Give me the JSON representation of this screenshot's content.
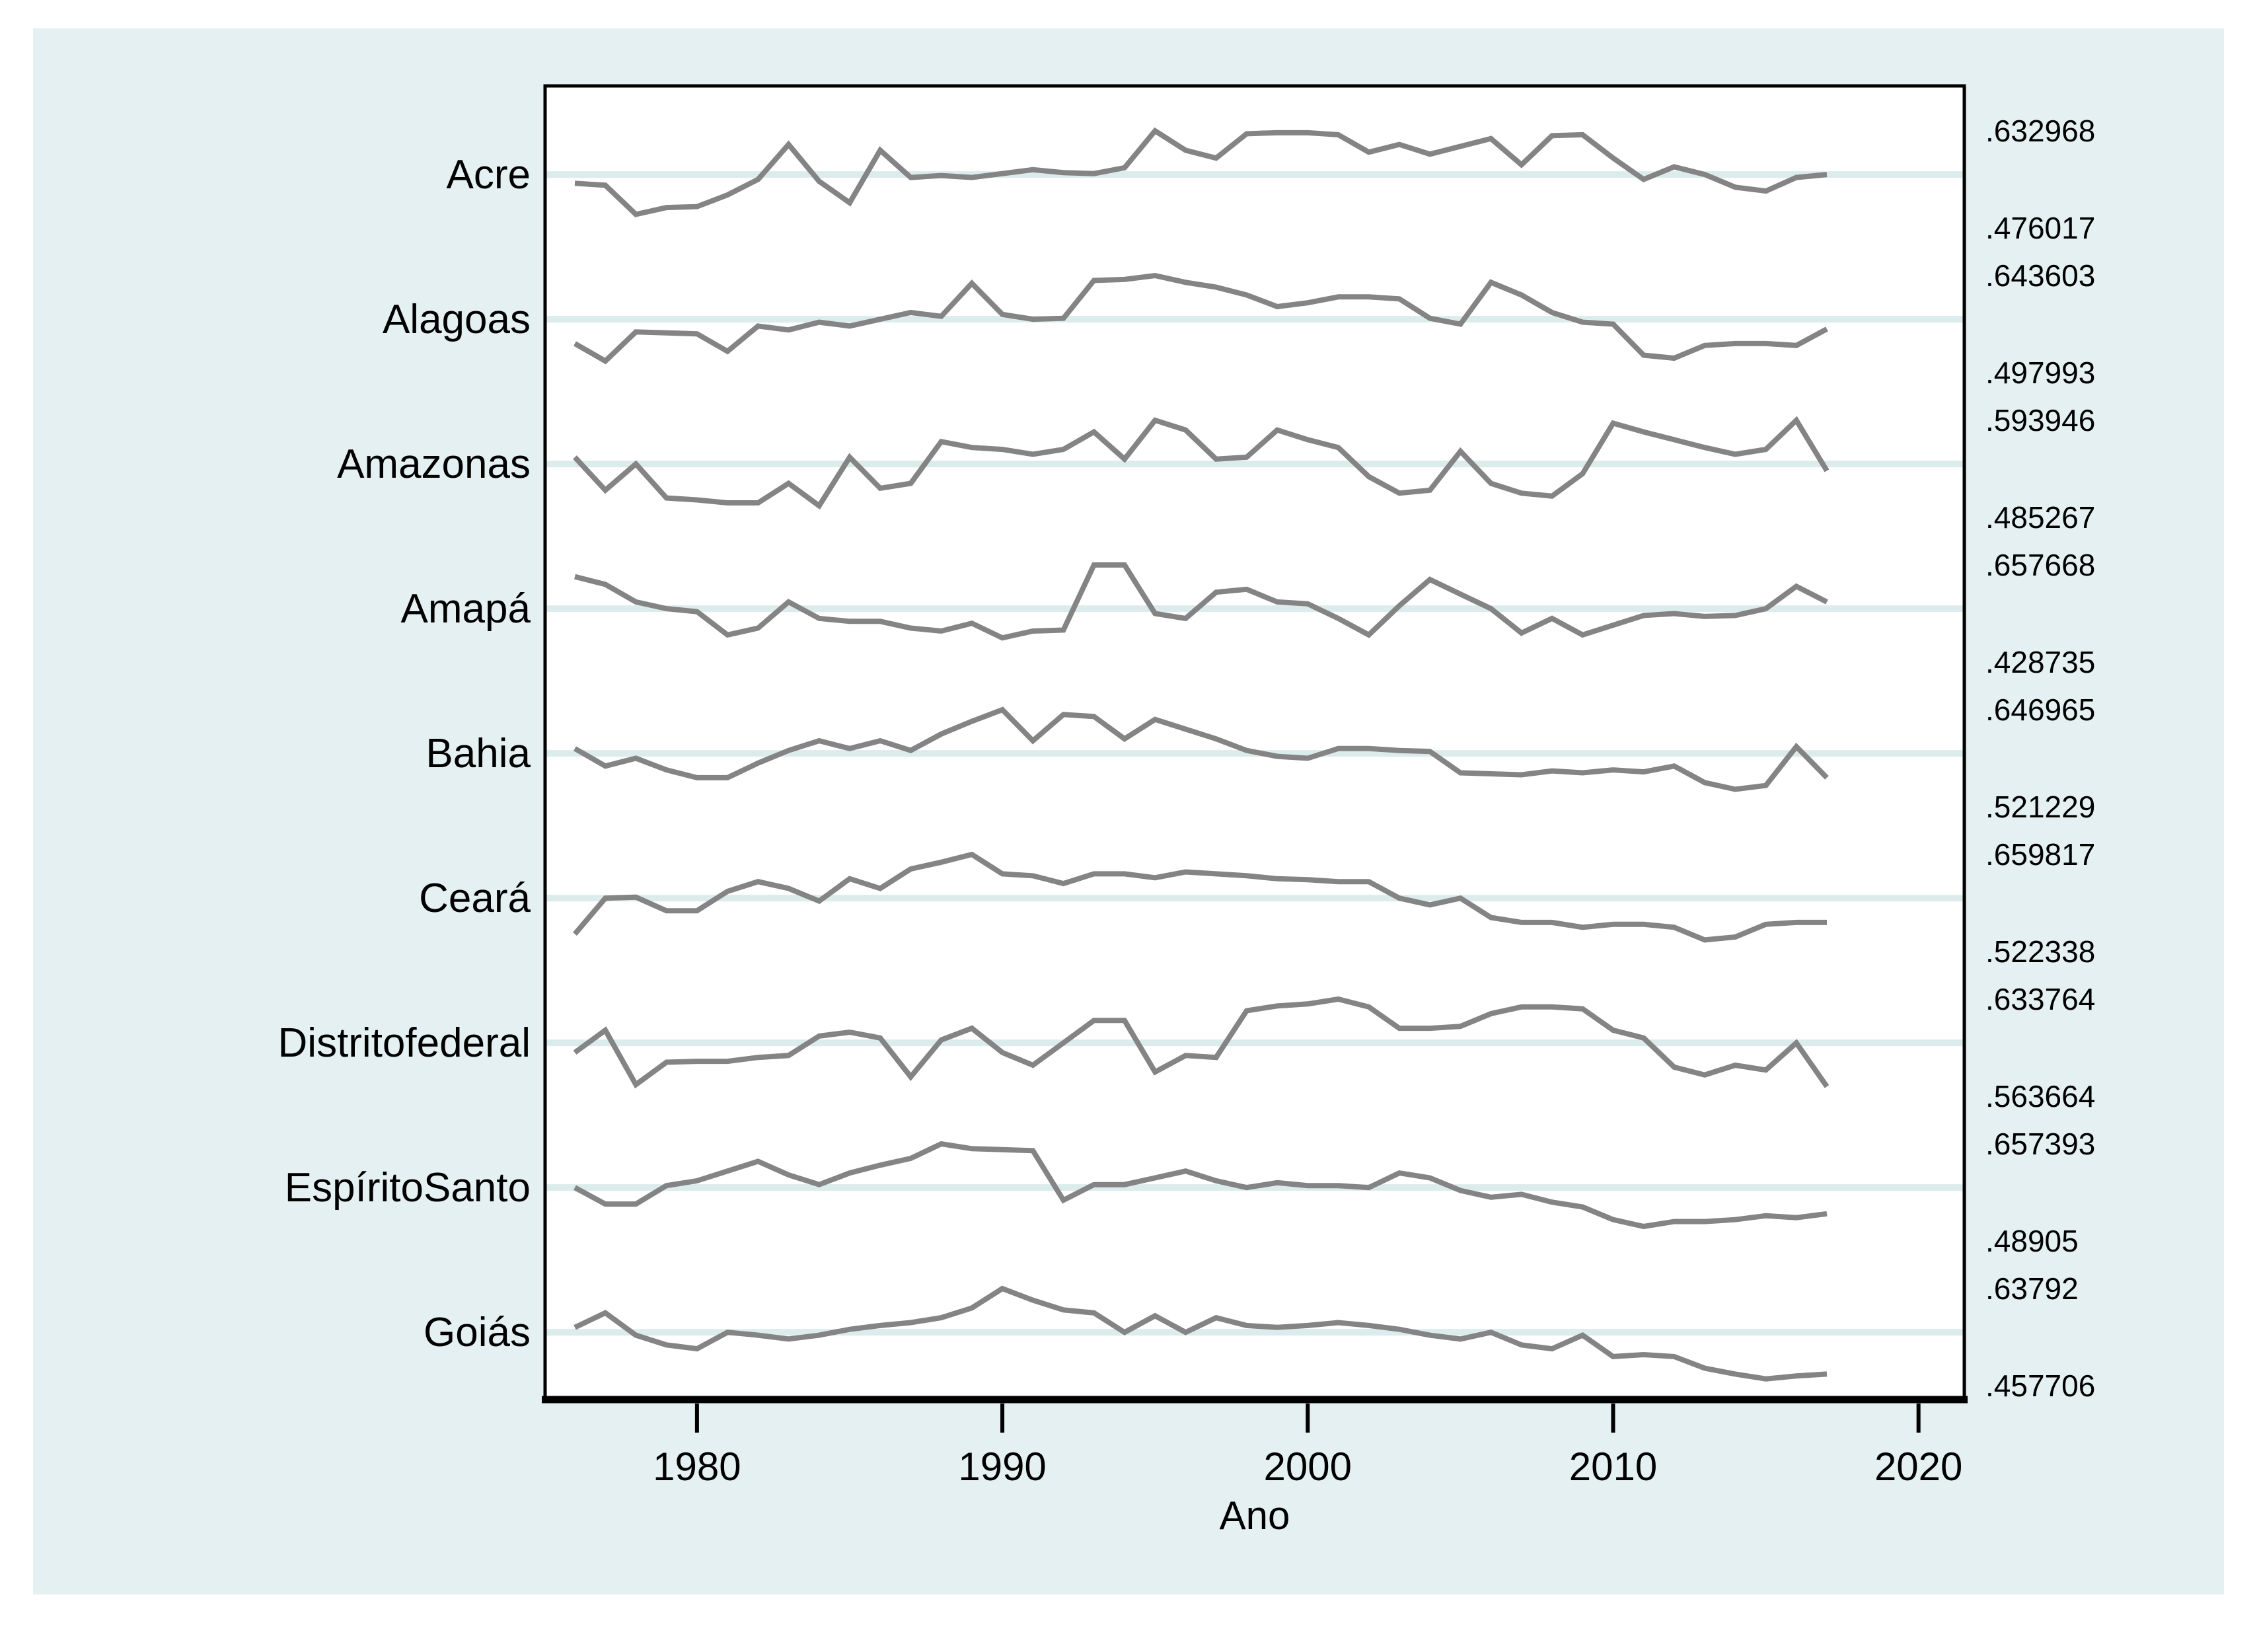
{
  "figure": {
    "canvas_bg": "#e4f0f1",
    "plot_bg": "#ffffff",
    "frame_color": "#000000",
    "series_line_color": "#848484",
    "ref_line_color": "#dcecec",
    "text_color": "#000000"
  },
  "chart_data": {
    "type": "line",
    "title": "",
    "xlabel": "Ano",
    "x_start_year": 1976,
    "x_end_year": 2017,
    "x_ticks": [
      1980,
      1990,
      2000,
      2010,
      2020
    ],
    "layout": "stacked small multiples; each series independently scaled to its own min/max band; right-hand labels give series max (top of band) and min (bottom of band); faint reference line at state-label level",
    "legend": "none",
    "grid": "off",
    "series": [
      {
        "name": "Acre",
        "max": 0.632968,
        "min": 0.476017,
        "max_label": ".632968",
        "min_label": ".476017",
        "normalized": [
          0.46,
          0.44,
          0.14,
          0.21,
          0.22,
          0.34,
          0.5,
          0.86,
          0.48,
          0.26,
          0.8,
          0.52,
          0.54,
          0.52,
          0.56,
          0.6,
          0.57,
          0.56,
          0.62,
          1.0,
          0.8,
          0.72,
          0.97,
          0.98,
          0.98,
          0.96,
          0.78,
          0.86,
          0.76,
          0.84,
          0.92,
          0.65,
          0.95,
          0.96,
          0.72,
          0.5,
          0.63,
          0.55,
          0.42,
          0.38,
          0.52,
          0.55
        ]
      },
      {
        "name": "Alagoas",
        "max": 0.643603,
        "min": 0.497993,
        "max_label": ".643603",
        "min_label": ".497993",
        "normalized": [
          0.3,
          0.12,
          0.42,
          0.41,
          0.4,
          0.22,
          0.48,
          0.44,
          0.52,
          0.48,
          0.55,
          0.62,
          0.58,
          0.92,
          0.6,
          0.55,
          0.56,
          0.95,
          0.96,
          1.0,
          0.93,
          0.88,
          0.8,
          0.68,
          0.72,
          0.78,
          0.78,
          0.76,
          0.56,
          0.5,
          0.93,
          0.8,
          0.62,
          0.52,
          0.5,
          0.18,
          0.15,
          0.28,
          0.3,
          0.3,
          0.28,
          0.45
        ]
      },
      {
        "name": "Amazonas",
        "max": 0.593946,
        "min": 0.485267,
        "max_label": ".593946",
        "min_label": ".485267",
        "normalized": [
          0.62,
          0.28,
          0.55,
          0.2,
          0.18,
          0.15,
          0.15,
          0.35,
          0.12,
          0.62,
          0.3,
          0.35,
          0.78,
          0.72,
          0.7,
          0.65,
          0.7,
          0.88,
          0.6,
          1.0,
          0.9,
          0.6,
          0.62,
          0.9,
          0.8,
          0.72,
          0.42,
          0.25,
          0.28,
          0.68,
          0.35,
          0.25,
          0.22,
          0.45,
          0.97,
          0.88,
          0.8,
          0.72,
          0.65,
          0.7,
          1.0,
          0.48
        ]
      },
      {
        "name": "Amapá",
        "max": 0.657668,
        "min": 0.428735,
        "max_label": ".657668",
        "min_label": ".428735",
        "normalized": [
          0.88,
          0.8,
          0.62,
          0.55,
          0.52,
          0.28,
          0.35,
          0.62,
          0.45,
          0.42,
          0.42,
          0.35,
          0.32,
          0.4,
          0.25,
          0.32,
          0.33,
          1.0,
          1.0,
          0.5,
          0.45,
          0.72,
          0.75,
          0.62,
          0.6,
          0.45,
          0.28,
          0.58,
          0.85,
          0.7,
          0.55,
          0.3,
          0.45,
          0.28,
          0.38,
          0.48,
          0.5,
          0.47,
          0.48,
          0.55,
          0.78,
          0.62
        ]
      },
      {
        "name": "Bahia",
        "max": 0.646965,
        "min": 0.521229,
        "max_label": ".646965",
        "min_label": ".521229",
        "normalized": [
          0.6,
          0.42,
          0.5,
          0.38,
          0.3,
          0.3,
          0.45,
          0.58,
          0.68,
          0.6,
          0.68,
          0.58,
          0.75,
          0.88,
          1.0,
          0.68,
          0.95,
          0.93,
          0.7,
          0.9,
          0.8,
          0.7,
          0.58,
          0.52,
          0.5,
          0.6,
          0.6,
          0.58,
          0.57,
          0.35,
          0.34,
          0.33,
          0.37,
          0.35,
          0.38,
          0.36,
          0.42,
          0.25,
          0.18,
          0.22,
          0.62,
          0.3
        ]
      },
      {
        "name": "Ceará",
        "max": 0.659817,
        "min": 0.522338,
        "max_label": ".659817",
        "min_label": ".522338",
        "normalized": [
          0.18,
          0.55,
          0.56,
          0.42,
          0.42,
          0.62,
          0.72,
          0.65,
          0.52,
          0.75,
          0.65,
          0.85,
          0.92,
          1.0,
          0.8,
          0.78,
          0.7,
          0.8,
          0.8,
          0.76,
          0.82,
          0.8,
          0.78,
          0.75,
          0.74,
          0.72,
          0.72,
          0.55,
          0.48,
          0.55,
          0.35,
          0.3,
          0.3,
          0.25,
          0.28,
          0.28,
          0.25,
          0.12,
          0.15,
          0.28,
          0.3,
          0.3
        ]
      },
      {
        "name": "Distritofederal",
        "max": 0.633764,
        "min": 0.563664,
        "max_label": ".633764",
        "min_label": ".563664",
        "normalized": [
          0.45,
          0.68,
          0.12,
          0.35,
          0.36,
          0.36,
          0.4,
          0.42,
          0.62,
          0.66,
          0.6,
          0.2,
          0.58,
          0.7,
          0.45,
          0.32,
          0.55,
          0.78,
          0.78,
          0.25,
          0.42,
          0.4,
          0.88,
          0.93,
          0.95,
          1.0,
          0.92,
          0.7,
          0.7,
          0.72,
          0.85,
          0.92,
          0.92,
          0.9,
          0.68,
          0.6,
          0.3,
          0.22,
          0.32,
          0.27,
          0.55,
          0.1
        ]
      },
      {
        "name": "EspíritoSanto",
        "max": 0.657393,
        "min": 0.48905,
        "max_label": ".657393",
        "min_label": ".48905",
        "normalized": [
          0.55,
          0.38,
          0.38,
          0.57,
          0.62,
          0.72,
          0.82,
          0.68,
          0.58,
          0.7,
          0.78,
          0.85,
          1.0,
          0.95,
          0.94,
          0.93,
          0.42,
          0.58,
          0.58,
          0.65,
          0.72,
          0.62,
          0.55,
          0.6,
          0.57,
          0.57,
          0.55,
          0.7,
          0.65,
          0.52,
          0.45,
          0.48,
          0.4,
          0.35,
          0.22,
          0.15,
          0.2,
          0.2,
          0.22,
          0.26,
          0.24,
          0.28
        ]
      },
      {
        "name": "Goiás",
        "max": 0.63792,
        "min": 0.457706,
        "max_label": ".63792",
        "min_label": ".457706",
        "normalized": [
          0.6,
          0.75,
          0.52,
          0.42,
          0.38,
          0.55,
          0.52,
          0.48,
          0.52,
          0.58,
          0.62,
          0.65,
          0.7,
          0.8,
          1.0,
          0.88,
          0.78,
          0.75,
          0.55,
          0.72,
          0.55,
          0.7,
          0.62,
          0.6,
          0.62,
          0.65,
          0.62,
          0.58,
          0.52,
          0.48,
          0.55,
          0.42,
          0.38,
          0.52,
          0.3,
          0.32,
          0.3,
          0.18,
          0.12,
          0.07,
          0.1,
          0.12
        ]
      }
    ]
  }
}
